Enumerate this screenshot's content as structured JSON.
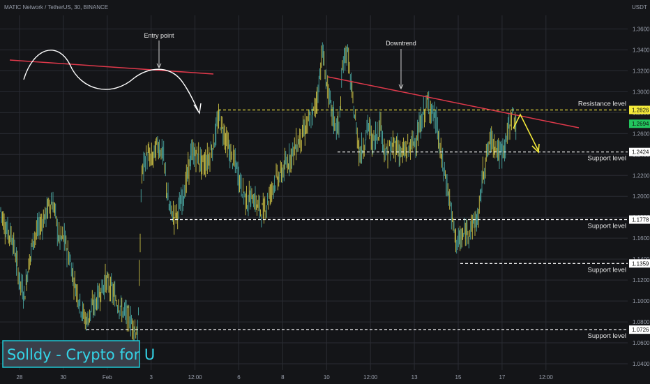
{
  "chart_data": {
    "type": "candlestick",
    "title": "MATIC Network / TetherUS, 30, BINANCE",
    "currency": "USDT",
    "y_ticks": [
      1.04,
      1.06,
      1.08,
      1.1,
      1.12,
      1.14,
      1.16,
      1.18,
      1.2,
      1.22,
      1.24,
      1.26,
      1.28,
      1.3,
      1.32,
      1.34,
      1.36
    ],
    "ylim": [
      1.034,
      1.373
    ],
    "x_ticks": [
      "28",
      "30",
      "Feb",
      "3",
      "12:00",
      "6",
      "8",
      "10",
      "12:00",
      "13",
      "15",
      "17",
      "12:00"
    ],
    "price_path": [
      [
        0,
        1.19
      ],
      [
        8,
        1.17
      ],
      [
        18,
        1.16
      ],
      [
        28,
        1.12
      ],
      [
        35,
        1.105
      ],
      [
        40,
        1.13
      ],
      [
        48,
        1.16
      ],
      [
        56,
        1.17
      ],
      [
        64,
        1.18
      ],
      [
        72,
        1.195
      ],
      [
        78,
        1.19
      ],
      [
        84,
        1.16
      ],
      [
        92,
        1.16
      ],
      [
        100,
        1.14
      ],
      [
        106,
        1.12
      ],
      [
        112,
        1.105
      ],
      [
        118,
        1.09
      ],
      [
        124,
        1.08
      ],
      [
        130,
        1.09
      ],
      [
        138,
        1.1
      ],
      [
        145,
        1.11
      ],
      [
        152,
        1.12
      ],
      [
        160,
        1.11
      ],
      [
        168,
        1.1
      ],
      [
        176,
        1.09
      ],
      [
        184,
        1.085
      ],
      [
        192,
        1.075
      ],
      [
        198,
        1.07
      ],
      [
        203,
        1.22
      ],
      [
        210,
        1.24
      ],
      [
        218,
        1.235
      ],
      [
        226,
        1.25
      ],
      [
        234,
        1.24
      ],
      [
        242,
        1.19
      ],
      [
        250,
        1.18
      ],
      [
        258,
        1.19
      ],
      [
        266,
        1.21
      ],
      [
        274,
        1.24
      ],
      [
        282,
        1.24
      ],
      [
        290,
        1.23
      ],
      [
        298,
        1.235
      ],
      [
        306,
        1.25
      ],
      [
        314,
        1.275
      ],
      [
        322,
        1.26
      ],
      [
        330,
        1.24
      ],
      [
        338,
        1.23
      ],
      [
        346,
        1.21
      ],
      [
        354,
        1.195
      ],
      [
        362,
        1.2
      ],
      [
        370,
        1.19
      ],
      [
        378,
        1.185
      ],
      [
        386,
        1.2
      ],
      [
        394,
        1.215
      ],
      [
        402,
        1.22
      ],
      [
        410,
        1.23
      ],
      [
        418,
        1.24
      ],
      [
        426,
        1.25
      ],
      [
        434,
        1.26
      ],
      [
        442,
        1.27
      ],
      [
        450,
        1.28
      ],
      [
        456,
        1.3
      ],
      [
        462,
        1.34
      ],
      [
        468,
        1.31
      ],
      [
        474,
        1.285
      ],
      [
        480,
        1.27
      ],
      [
        486,
        1.265
      ],
      [
        492,
        1.33
      ],
      [
        498,
        1.34
      ],
      [
        504,
        1.3
      ],
      [
        510,
        1.27
      ],
      [
        516,
        1.24
      ],
      [
        522,
        1.25
      ],
      [
        528,
        1.27
      ],
      [
        534,
        1.25
      ],
      [
        540,
        1.26
      ],
      [
        546,
        1.27
      ],
      [
        552,
        1.24
      ],
      [
        560,
        1.245
      ],
      [
        568,
        1.25
      ],
      [
        576,
        1.24
      ],
      [
        584,
        1.245
      ],
      [
        592,
        1.25
      ],
      [
        600,
        1.26
      ],
      [
        608,
        1.28
      ],
      [
        614,
        1.29
      ],
      [
        620,
        1.28
      ],
      [
        626,
        1.27
      ],
      [
        632,
        1.24
      ],
      [
        638,
        1.22
      ],
      [
        644,
        1.2
      ],
      [
        650,
        1.17
      ],
      [
        656,
        1.155
      ],
      [
        662,
        1.16
      ],
      [
        668,
        1.165
      ],
      [
        674,
        1.17
      ],
      [
        680,
        1.175
      ],
      [
        686,
        1.18
      ],
      [
        692,
        1.22
      ],
      [
        698,
        1.24
      ],
      [
        704,
        1.255
      ],
      [
        710,
        1.25
      ],
      [
        716,
        1.24
      ],
      [
        722,
        1.245
      ],
      [
        728,
        1.26
      ],
      [
        734,
        1.28
      ],
      [
        740,
        1.27
      ]
    ],
    "levels": [
      {
        "name": "Resistance level",
        "value": 1.2826,
        "x_start": 313,
        "badge_bg": "#f5eb3b",
        "badge_fg": "#111111",
        "line_color": "#e6dc3c"
      },
      {
        "name": "Support level",
        "value": 1.2424,
        "x_start": 484,
        "badge_bg": "#ffffff",
        "badge_fg": "#111111",
        "line_color": "#ffffff"
      },
      {
        "name": "Support level",
        "value": 1.1778,
        "x_start": 244,
        "badge_bg": "#ffffff",
        "badge_fg": "#111111",
        "line_color": "#ffffff"
      },
      {
        "name": "Support level",
        "value": 1.1359,
        "x_start": 660,
        "badge_bg": "#ffffff",
        "badge_fg": "#111111",
        "line_color": "#ffffff"
      },
      {
        "name": "Support level",
        "value": 1.0726,
        "x_start": 124,
        "badge_bg": "#ffffff",
        "badge_fg": "#111111",
        "line_color": "#ffffff"
      }
    ],
    "current_price": {
      "value": 1.2694,
      "badge_bg": "#22c55e",
      "badge_fg": "#111111"
    },
    "annotations": {
      "entry_point": "Entry point",
      "downtrend": "Downtrend"
    },
    "colors": {
      "trend_line": "#e0394b",
      "projection": "#f5eb3b",
      "candle_up": "#4fb6b0",
      "candle_down": "#e3d64a"
    }
  },
  "watermark": "Solldy - Crypto for U"
}
